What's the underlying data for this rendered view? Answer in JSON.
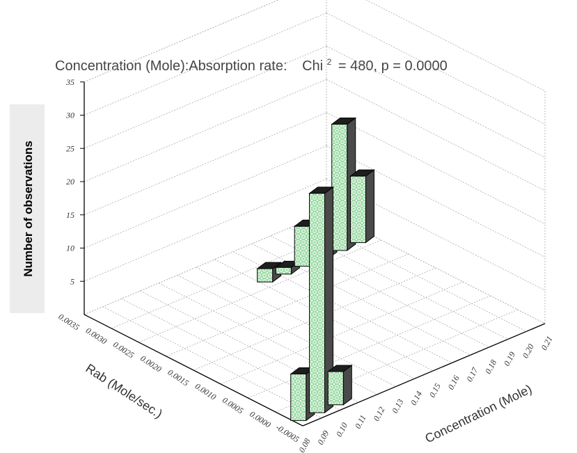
{
  "chart_data": {
    "type": "bar3d",
    "title_parts": {
      "main": "Concentration (Mole):Absorption rate:",
      "chi": "Chi",
      "chi_sup": "2",
      "stat": "= 480, p = 0.0000"
    },
    "ylabel": "Number of observations",
    "xlabel": "Rab (Mole/sec.)",
    "zlabel": "Concentration (Mole)",
    "y_ticks": [
      "5",
      "10",
      "15",
      "20",
      "25",
      "30",
      "35"
    ],
    "x_ticks": [
      "0.0035",
      "0.0030",
      "0.0025",
      "0.0020",
      "0.0015",
      "0.0010",
      "0.0005",
      "0.0000",
      "-0.0005"
    ],
    "z_ticks": [
      "0.08",
      "0.09",
      "0.10",
      "0.11",
      "0.12",
      "0.13",
      "0.14",
      "0.15",
      "0.16",
      "0.17",
      "0.18",
      "0.19",
      "0.20",
      "0.21"
    ],
    "ylim": [
      0,
      35
    ],
    "bars": [
      {
        "rab": "0.0000",
        "concentration": "0.08",
        "value": 7
      },
      {
        "rab": "0.0000",
        "concentration": "0.09",
        "value": 33
      },
      {
        "rab": "0.0000",
        "concentration": "0.10",
        "value": 5
      },
      {
        "rab": "0.0030",
        "concentration": "0.15",
        "value": 2
      },
      {
        "rab": "0.0030",
        "concentration": "0.16",
        "value": 1
      },
      {
        "rab": "0.0030",
        "concentration": "0.17",
        "value": 6
      },
      {
        "rab": "0.0030",
        "concentration": "0.18",
        "value": 7
      },
      {
        "rab": "0.0030",
        "concentration": "0.19",
        "value": 19
      },
      {
        "rab": "0.0030",
        "concentration": "0.20",
        "value": 10
      }
    ],
    "grid": true,
    "colors": {
      "bar_face": "#9fdca8",
      "bar_pattern": "#ffffff",
      "bar_side": "#4a4a4a",
      "bar_top": "#1e1e1e"
    }
  }
}
